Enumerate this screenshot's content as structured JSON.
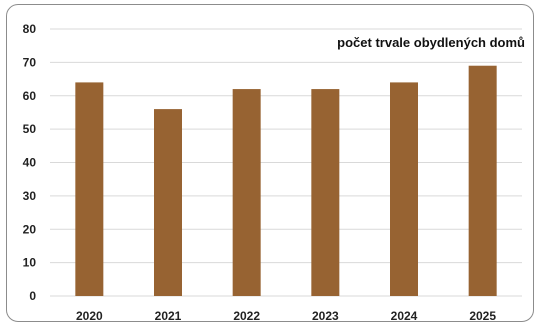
{
  "chart_data": {
    "type": "bar",
    "title": "počet trvale obydlených domů",
    "categories": [
      "2020",
      "2021",
      "2022",
      "2023",
      "2024",
      "2025"
    ],
    "values": [
      64,
      56,
      62,
      62,
      64,
      69
    ],
    "xlabel": "",
    "ylabel": "",
    "ylim": [
      0,
      80
    ],
    "yticks": [
      "0",
      "10",
      "20",
      "30",
      "40",
      "50",
      "60",
      "70",
      "80"
    ],
    "grid": true,
    "legend": "none",
    "bar_color": "#976332",
    "grid_color": "#d9d9d9"
  }
}
